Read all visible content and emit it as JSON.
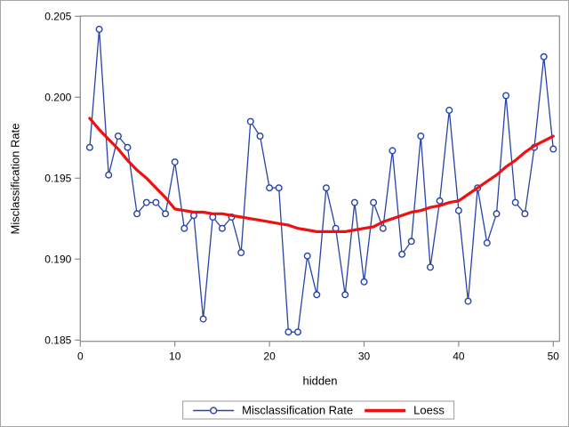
{
  "chart_data": {
    "type": "line",
    "title": "",
    "xlabel": "hidden",
    "ylabel": "Misclassification Rate",
    "x_ticks": [
      0,
      10,
      20,
      30,
      40,
      50
    ],
    "y_ticks": [
      0.185,
      0.19,
      0.195,
      0.2,
      0.205
    ],
    "y_tick_labels": [
      "0.185",
      "0.190",
      "0.195",
      "0.200",
      "0.205"
    ],
    "xlim": [
      0,
      50.7
    ],
    "ylim": [
      0.1849,
      0.2051
    ],
    "grid": false,
    "legend_position": "bottom-center",
    "axis_color": "#8a8a8a",
    "text_color": "#000000",
    "x": [
      1,
      2,
      3,
      4,
      5,
      6,
      7,
      8,
      9,
      10,
      11,
      12,
      13,
      14,
      15,
      16,
      17,
      18,
      19,
      20,
      21,
      22,
      23,
      24,
      25,
      26,
      27,
      28,
      29,
      30,
      31,
      32,
      33,
      34,
      35,
      36,
      37,
      38,
      39,
      40,
      41,
      42,
      43,
      44,
      45,
      46,
      47,
      48,
      49,
      50
    ],
    "series": [
      {
        "name": "Misclassification Rate",
        "style": "line-with-markers",
        "marker": "open-circle",
        "color": "#2843A8",
        "values": [
          0.1969,
          0.2042,
          0.1952,
          0.1976,
          0.1969,
          0.1928,
          0.1935,
          0.1935,
          0.1928,
          0.196,
          0.1919,
          0.1927,
          0.1863,
          0.1926,
          0.1919,
          0.1926,
          0.1904,
          0.1985,
          0.1976,
          0.1944,
          0.1944,
          0.1855,
          0.1855,
          0.1902,
          0.1878,
          0.1944,
          0.1919,
          0.1878,
          0.1935,
          0.1886,
          0.1935,
          0.1919,
          0.1967,
          0.1903,
          0.1911,
          0.1976,
          0.1895,
          0.1936,
          0.1992,
          0.193,
          0.1874,
          0.1944,
          0.191,
          0.1928,
          0.2001,
          0.1935,
          0.1928,
          0.1969,
          0.2025,
          0.1968
        ]
      },
      {
        "name": "Loess",
        "style": "smooth-line",
        "marker": "none",
        "color": "#EE1111",
        "values": [
          0.1987,
          0.198,
          0.1974,
          0.1968,
          0.1961,
          0.1955,
          0.195,
          0.1944,
          0.1938,
          0.1931,
          0.193,
          0.1929,
          0.1929,
          0.1928,
          0.1928,
          0.1927,
          0.1926,
          0.1925,
          0.1924,
          0.1923,
          0.1922,
          0.1921,
          0.1919,
          0.1918,
          0.1917,
          0.1917,
          0.1917,
          0.1917,
          0.1918,
          0.1919,
          0.192,
          0.1923,
          0.1925,
          0.1927,
          0.1929,
          0.193,
          0.1932,
          0.1933,
          0.1935,
          0.1936,
          0.194,
          0.1944,
          0.1948,
          0.1952,
          0.1957,
          0.1961,
          0.1966,
          0.197,
          0.1973,
          0.1976
        ]
      }
    ]
  }
}
